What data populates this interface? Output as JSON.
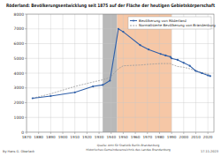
{
  "chart_data": {
    "type": "line",
    "title": "Röderland: Bevölkerungsentwicklung seit 1875 auf der Fläche der heutigen Gebietskörperschaft",
    "x": [
      1875,
      1890,
      1910,
      1925,
      1933,
      1939,
      1946,
      1950,
      1964,
      1971,
      1981,
      1985,
      1989,
      1990,
      1995,
      2000,
      2005,
      2010,
      2015,
      2020,
      2022
    ],
    "series": [
      {
        "name": "Bevölkerung von Röderland",
        "color": "#2f5fa8",
        "marker": "circle",
        "line_style": "solid",
        "values": [
          2300,
          2450,
          2700,
          3100,
          3200,
          3500,
          7000,
          6800,
          5900,
          5600,
          5300,
          5200,
          5100,
          5000,
          4900,
          4700,
          4500,
          4150,
          4000,
          3850,
          3800
        ]
      },
      {
        "name": "Normalisierte Bevölkerung von Brandenburg",
        "color": "#9a9a9a",
        "marker": "none",
        "line_style": "dashed",
        "values": [
          2300,
          2600,
          3100,
          3400,
          3550,
          3700,
          4300,
          4500,
          4550,
          4600,
          4650,
          4650,
          4650,
          4600,
          4450,
          4400,
          4300,
          4150,
          4050,
          3950,
          3900
        ]
      }
    ],
    "periods": [
      {
        "from": 1933,
        "to": 1945,
        "color": "#b9b9b9"
      },
      {
        "from": 1945,
        "to": 1990,
        "color": "#f6c7a6"
      }
    ],
    "xlim": [
      1870,
      2025
    ],
    "xticks": [
      1870,
      1880,
      1890,
      1900,
      1910,
      1920,
      1930,
      1940,
      1950,
      1960,
      1970,
      1980,
      1990,
      2000,
      2010,
      2020
    ],
    "ylim": [
      0,
      8000
    ],
    "yticks": [
      0,
      1000,
      2000,
      3000,
      4000,
      5000,
      6000,
      7000,
      8000
    ],
    "grid": true,
    "legend": "upper right",
    "footer_left": "By Hans G. Oberlack",
    "sources": [
      "Quelle: Amt für Statistik Berlin-Brandenburg",
      "Historisches Gemeindeverzeichnis des Landes Brandenburg"
    ],
    "date": "17.11.2023"
  }
}
